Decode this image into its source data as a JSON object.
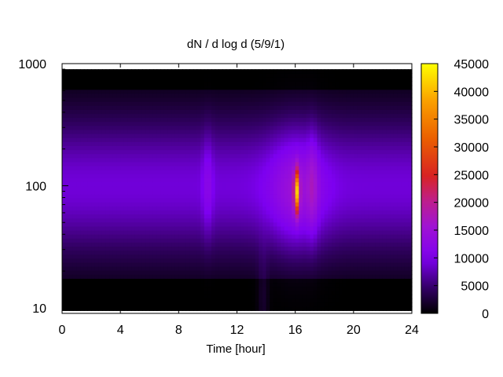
{
  "chart_data": {
    "type": "heatmap",
    "title": "dN / d log d (5/9/1)",
    "xlabel": "Time [hour]",
    "ylabel": "",
    "xlim": [
      0,
      24
    ],
    "ylim": [
      9,
      1000
    ],
    "y_scale": "log",
    "x_ticks": [
      "0",
      "4",
      "8",
      "12",
      "16",
      "20",
      "24"
    ],
    "y_ticks": [
      "10",
      "100",
      "1000"
    ],
    "colorbar": {
      "range": [
        0,
        45000
      ],
      "ticks": [
        "0",
        "5000",
        "10000",
        "15000",
        "20000",
        "25000",
        "30000",
        "35000",
        "40000",
        "45000"
      ],
      "palette": "black-purple-red-yellow"
    },
    "features": [
      {
        "kind": "background_band",
        "d_range": [
          18,
          600
        ],
        "peak_d": 100,
        "peak_value": 9000
      },
      {
        "kind": "burst",
        "time_hour": 16.1,
        "peak_d": 90,
        "peak_value": 27000
      },
      {
        "kind": "streak",
        "time_hour": 10.0,
        "peak_d": 100,
        "peak_value": 11000
      },
      {
        "kind": "streak",
        "time_hour": 13.8,
        "peak_d": 12,
        "peak_value": 10000
      },
      {
        "kind": "streak",
        "time_hour": 17.2,
        "peak_d": 100,
        "peak_value": 12000
      }
    ]
  }
}
